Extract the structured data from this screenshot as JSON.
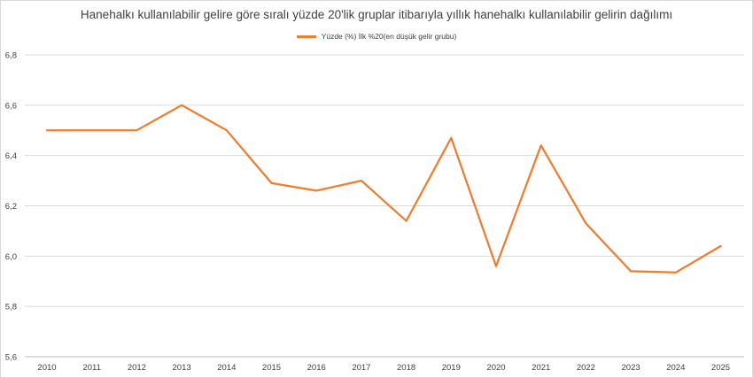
{
  "chart_data": {
    "type": "line",
    "title": "Hanehalkı kullanılabilir gelire göre sıralı yüzde 20'lik gruplar itibarıyla yıllık hanehalkı kullanılabilir gelirin dağılımı",
    "categories": [
      "2010",
      "2011",
      "2012",
      "2013",
      "2014",
      "2015",
      "2016",
      "2017",
      "2018",
      "2019",
      "2020",
      "2021",
      "2022",
      "2023",
      "2024",
      "2025"
    ],
    "series": [
      {
        "name": "Yüzde (%) İlk %20(en düşük gelir grubu)",
        "color": "#ed7d31",
        "values": [
          6.5,
          6.5,
          6.5,
          6.6,
          6.5,
          6.29,
          6.26,
          6.3,
          6.14,
          6.47,
          5.96,
          6.44,
          6.13,
          5.94,
          5.935,
          6.04
        ]
      }
    ],
    "ylim": [
      5.6,
      6.8
    ],
    "yticks": [
      "5,6",
      "5,8",
      "6,0",
      "6,2",
      "6,4",
      "6,6",
      "6,8"
    ],
    "grid": true,
    "legend_position": "top"
  }
}
